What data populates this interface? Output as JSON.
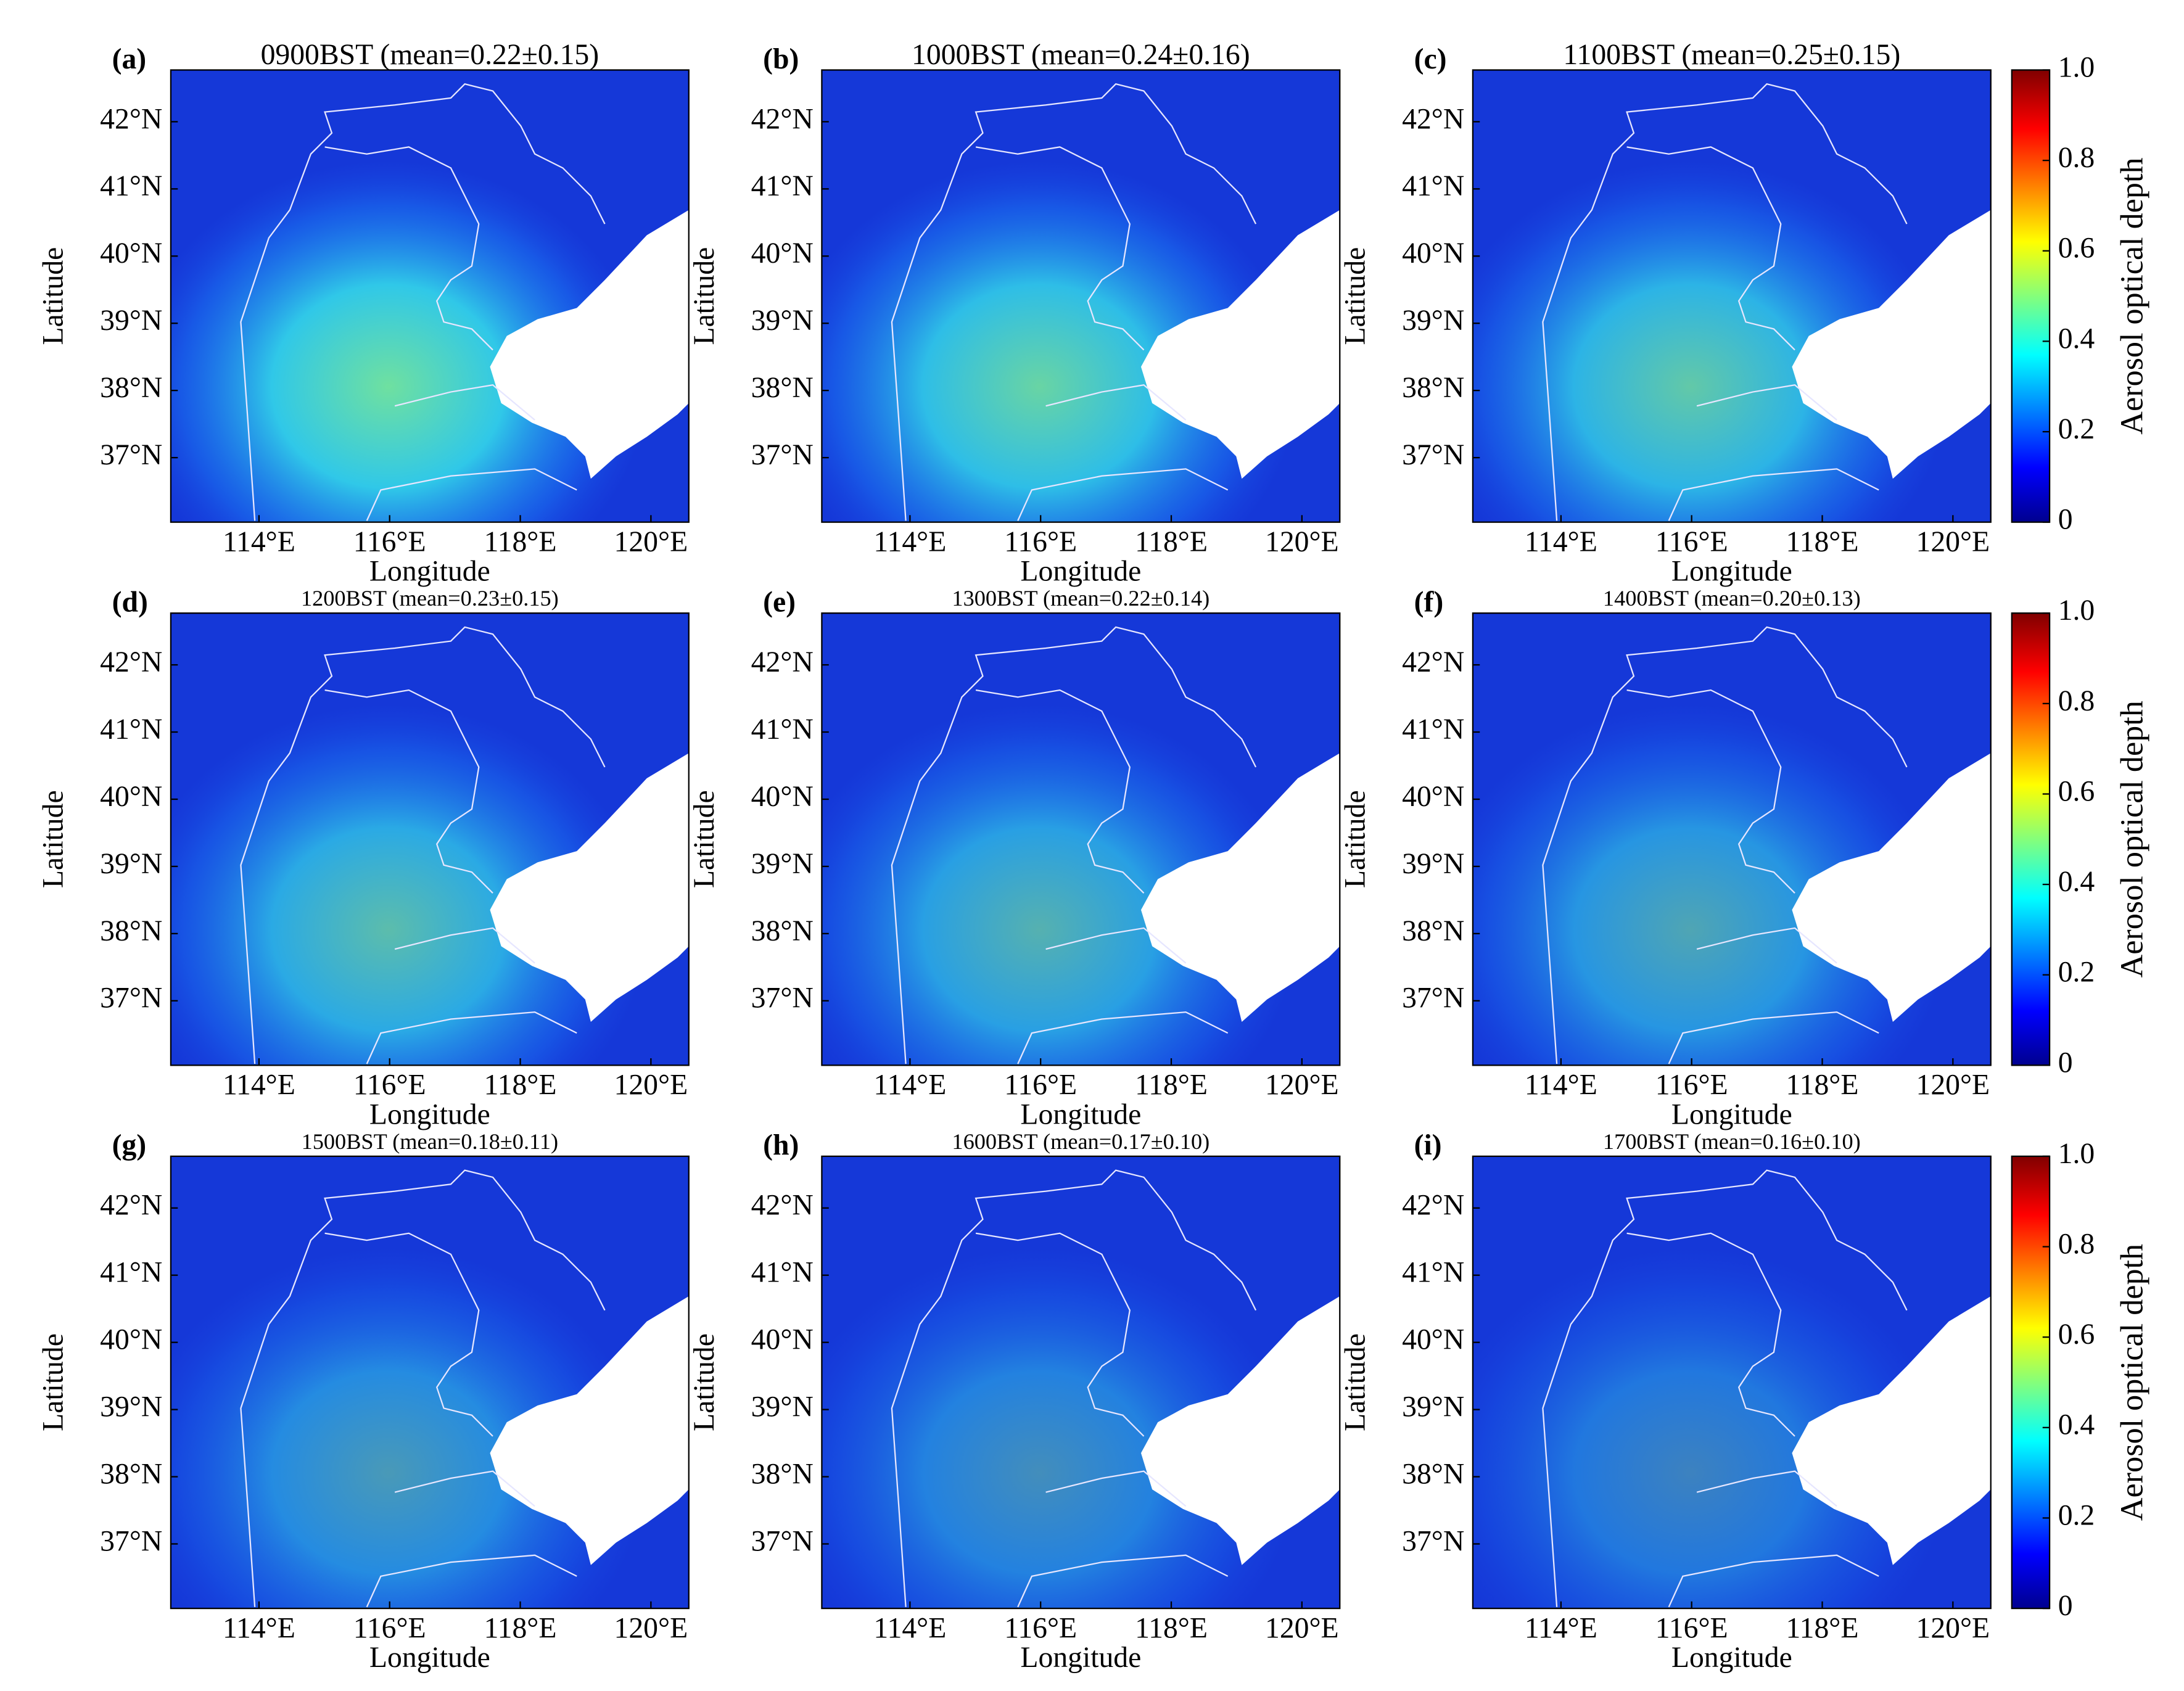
{
  "panels": [
    {
      "label": "(a)",
      "title": "0900BST (mean=0.22±0.15)",
      "x_label": "Longitude",
      "y_label": "Latitude"
    },
    {
      "label": "(b)",
      "title": "1000BST (mean=0.24±0.16)",
      "x_label": "Longitude",
      "y_label": "Latitude"
    },
    {
      "label": "(c)",
      "title": "1100BST (mean=0.25±0.15)",
      "x_label": "Longitude",
      "y_label": "Latitude"
    },
    {
      "label": "(d)",
      "title": "1200BST (mean=0.23±0.15)",
      "x_label": "Longitude",
      "y_label": "Latitude"
    },
    {
      "label": "(e)",
      "title": "1300BST (mean=0.22±0.14)",
      "x_label": "Longitude",
      "y_label": "Latitude"
    },
    {
      "label": "(f)",
      "title": "1400BST (mean=0.20±0.13)",
      "x_label": "Longitude",
      "y_label": "Latitude"
    },
    {
      "label": "(g)",
      "title": "1500BST (mean=0.18±0.11)",
      "x_label": "Longitude",
      "y_label": "Latitude"
    },
    {
      "label": "(h)",
      "title": "1600BST (mean=0.17±0.10)",
      "x_label": "Longitude",
      "y_label": "Latitude"
    },
    {
      "label": "(i)",
      "title": "1700BST (mean=0.16±0.10)",
      "x_label": "Longitude",
      "y_label": "Latitude"
    }
  ],
  "map": {
    "xlim": [
      112.65,
      120.58
    ],
    "ylim": [
      36.04,
      42.77
    ],
    "xticks": [
      {
        "value": 114,
        "label": "114°E"
      },
      {
        "value": 116,
        "label": "116°E"
      },
      {
        "value": 118,
        "label": "118°E"
      },
      {
        "value": 120,
        "label": "120°E"
      }
    ],
    "yticks": [
      {
        "value": 37,
        "label": "37°N"
      },
      {
        "value": 38,
        "label": "38°N"
      },
      {
        "value": 39,
        "label": "39°N"
      },
      {
        "value": 40,
        "label": "40°N"
      },
      {
        "value": 41,
        "label": "41°N"
      },
      {
        "value": 42,
        "label": "42°N"
      }
    ]
  },
  "colorbar": {
    "label": "Aerosol optical depth",
    "lim": [
      0,
      1
    ],
    "ticks": [
      {
        "value": 0,
        "label": "0"
      },
      {
        "value": 0.2,
        "label": "0.2"
      },
      {
        "value": 0.4,
        "label": "0.4"
      },
      {
        "value": 0.6,
        "label": "0.6"
      },
      {
        "value": 0.8,
        "label": "0.8"
      },
      {
        "value": 1,
        "label": "1.0"
      }
    ]
  }
}
